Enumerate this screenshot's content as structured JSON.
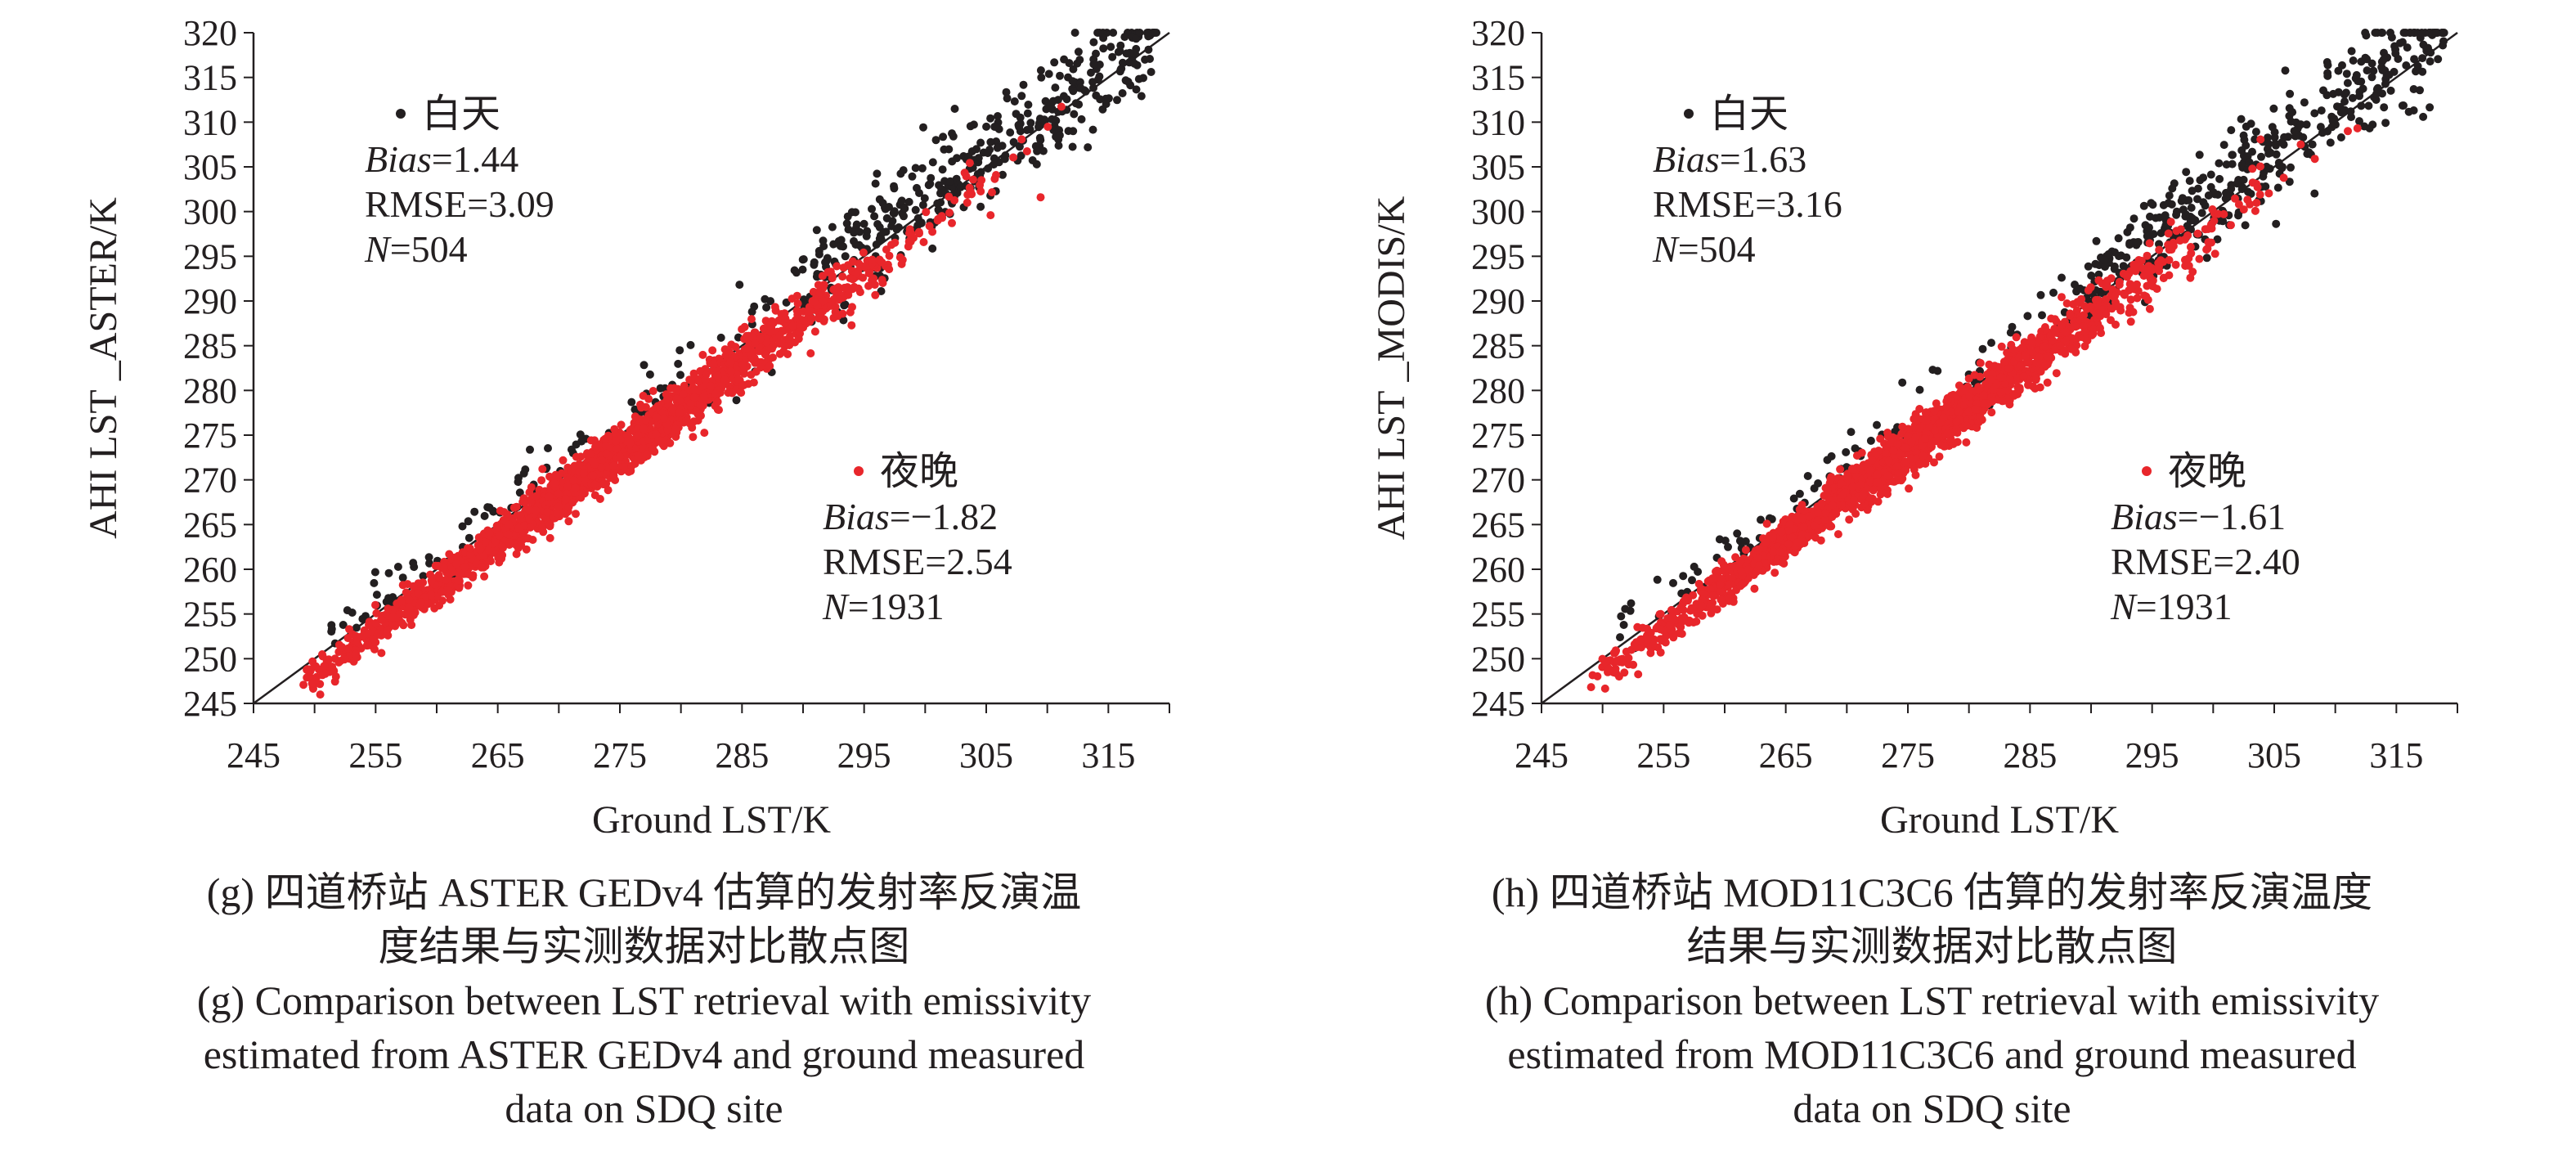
{
  "chart_data": [
    {
      "type": "scatter",
      "panel": "g",
      "xlabel": "Ground LST/K",
      "ylabel": "AHI LST _ASTER/K",
      "xlim": [
        245,
        320
      ],
      "ylim": [
        245,
        320
      ],
      "xticks": [
        245,
        255,
        265,
        275,
        285,
        295,
        305,
        315
      ],
      "yticks": [
        245,
        250,
        255,
        260,
        265,
        270,
        275,
        280,
        285,
        290,
        295,
        300,
        305,
        310,
        315,
        320
      ],
      "reference_line": "1:1",
      "series": [
        {
          "name": "白天",
          "color": "#231f20",
          "n_points": 504,
          "x_range": [
            251,
            319
          ],
          "mean_bias": 1.44,
          "rmse": 3.09,
          "stats_lines": {
            "bias": "=1.44",
            "rmse": "RMSE=3.09",
            "n": "=504"
          }
        },
        {
          "name": "夜晚",
          "color": "#e8262b",
          "n_points": 1931,
          "x_range": [
            249,
            312
          ],
          "mean_bias": -1.82,
          "rmse": 2.54,
          "stats_lines": {
            "bias": "=−1.82",
            "rmse": "RMSE=2.54",
            "n": "=1931"
          }
        }
      ],
      "caption_zh": [
        "(g) 四道桥站 ASTER GEDv4 估算的发射率反演温",
        "度结果与实测数据对比散点图"
      ],
      "caption_en": [
        "(g) Comparison between LST retrieval with emissivity",
        "estimated from ASTER GEDv4 and ground measured",
        "data on SDQ site"
      ]
    },
    {
      "type": "scatter",
      "panel": "h",
      "xlabel": "Ground LST/K",
      "ylabel": "AHI LST _MODIS/K",
      "xlim": [
        245,
        320
      ],
      "ylim": [
        245,
        320
      ],
      "xticks": [
        245,
        255,
        265,
        275,
        285,
        295,
        305,
        315
      ],
      "yticks": [
        245,
        250,
        255,
        260,
        265,
        270,
        275,
        280,
        285,
        290,
        295,
        300,
        305,
        310,
        315,
        320
      ],
      "reference_line": "1:1",
      "series": [
        {
          "name": "白天",
          "color": "#231f20",
          "n_points": 504,
          "x_range": [
            251,
            319
          ],
          "mean_bias": 1.63,
          "rmse": 3.16,
          "stats_lines": {
            "bias": "=1.63",
            "rmse": "RMSE=3.16",
            "n": "=504"
          }
        },
        {
          "name": "夜晚",
          "color": "#e8262b",
          "n_points": 1931,
          "x_range": [
            249,
            312
          ],
          "mean_bias": -1.61,
          "rmse": 2.4,
          "stats_lines": {
            "bias": "=−1.61",
            "rmse": "RMSE=2.40",
            "n": "=1931"
          }
        }
      ],
      "caption_zh": [
        "(h) 四道桥站 MOD11C3C6 估算的发射率反演温度",
        "结果与实测数据对比散点图"
      ],
      "caption_en": [
        "(h) Comparison between LST retrieval with emissivity",
        "estimated from MOD11C3C6 and ground measured",
        "data on SDQ site"
      ]
    }
  ],
  "stat_labels": {
    "bias": "Bias",
    "n": "N"
  }
}
